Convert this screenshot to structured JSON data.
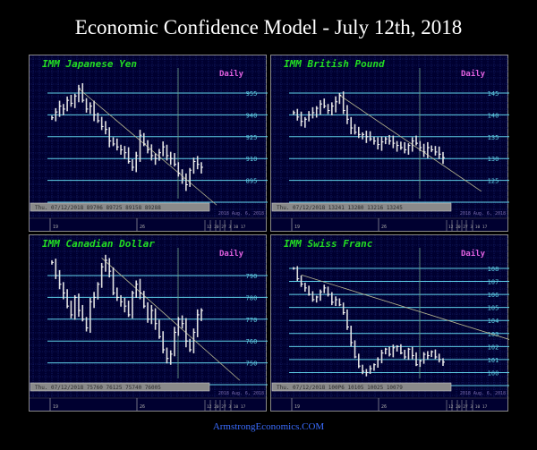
{
  "title": "Economic Confidence Model - July 12th, 2018",
  "footer": "ArmstrongEconomics.COM",
  "chart_data": [
    {
      "type": "bar",
      "title": "IMM Japanese Yen",
      "period": "Daily",
      "levels": [
        955,
        940,
        925,
        910,
        895,
        880
      ],
      "level_labels": [
        "955",
        "940",
        "925",
        "910",
        "895"
      ],
      "closes": [
        938,
        942,
        946,
        944,
        950,
        948,
        953,
        958,
        950,
        944,
        946,
        940,
        936,
        932,
        930,
        922,
        920,
        918,
        916,
        914,
        908,
        904,
        912,
        926,
        920,
        916,
        912,
        910,
        914,
        918,
        912,
        910,
        906,
        900,
        896,
        892,
        902,
        908,
        906,
        904
      ],
      "trendline": [
        [
          7,
          958
        ],
        [
          43,
          878
        ]
      ],
      "readout": "Thu. 07/12/2018  89706  89725  89158  89288",
      "x_tick_labels": [
        "19",
        "26"
      ],
      "x_note": "2018 Aug. 6, 2018",
      "x_small_labels": "12 20 27 3 10 17"
    },
    {
      "type": "bar",
      "title": "IMM British Pound",
      "period": "Daily",
      "levels": [
        145,
        140,
        135,
        130,
        125,
        120
      ],
      "level_labels": [
        "145",
        "140",
        "135",
        "130",
        "125"
      ],
      "closes": [
        140.5,
        139.5,
        138.5,
        139,
        140,
        140.5,
        141.5,
        142.5,
        142,
        141,
        142,
        143,
        144.5,
        141,
        139,
        137,
        136,
        135.5,
        135.5,
        135,
        134.5,
        134,
        133.2,
        133.8,
        134.5,
        134,
        133.5,
        133,
        132.5,
        132,
        133,
        134,
        133.5,
        132.5,
        131.5,
        132.5,
        132,
        131.5,
        131,
        130.2
      ],
      "trendline": [
        [
          12,
          144.5
        ],
        [
          49,
          122.5
        ]
      ],
      "readout": "Thu. 07/12/2018  13241  13280  13216  13245",
      "x_tick_labels": [
        "19",
        "26"
      ],
      "x_note": "2018 Aug. 6, 2018",
      "x_small_labels": "12 20 27 3 10 17"
    },
    {
      "type": "bar",
      "title": "IMM Canadian Dollar",
      "period": "Daily",
      "levels": [
        790,
        780,
        770,
        760,
        750,
        740
      ],
      "level_labels": [
        "790",
        "780",
        "770",
        "760",
        "750"
      ],
      "closes": [
        796,
        790,
        786,
        782,
        776,
        772,
        780,
        774,
        770,
        766,
        778,
        780,
        786,
        794,
        797,
        792,
        782,
        780,
        778,
        776,
        772,
        782,
        786,
        782,
        776,
        770,
        774,
        768,
        762,
        756,
        752,
        754,
        764,
        770,
        768,
        760,
        756,
        764,
        772,
        774
      ],
      "trendline": [
        [
          13,
          798
        ],
        [
          49,
          742
        ]
      ],
      "readout": "Thu. 07/12/2018  75760  76125  75740  76005",
      "x_tick_labels": [
        "19",
        "26"
      ],
      "x_note": "2018 Aug. 6, 2018",
      "x_small_labels": "12 20 27 3 10 17"
    },
    {
      "type": "bar",
      "title": "IMM Swiss Franc",
      "period": "Daily",
      "levels": [
        108,
        107,
        106,
        105,
        104,
        103,
        102,
        101,
        100,
        99
      ],
      "level_labels": [
        "108",
        "107",
        "106",
        "105",
        "104",
        "103",
        "102",
        "101",
        "100"
      ],
      "closes": [
        108,
        107.2,
        106.8,
        106.5,
        106,
        105.6,
        105.8,
        106.2,
        106.5,
        106,
        105.4,
        105.6,
        105.2,
        104.6,
        103.5,
        102.3,
        101.2,
        100.5,
        100.1,
        100,
        100.3,
        100.6,
        101,
        101.5,
        101.8,
        101.4,
        101.9,
        102,
        101.5,
        101.2,
        101.8,
        101.3,
        100.6,
        100.9,
        101.4,
        101.3,
        101.6,
        101.2,
        101,
        100.8
      ],
      "trendline": [
        [
          2,
          107.5
        ],
        [
          60,
          102.2
        ]
      ],
      "readout": "Thu. 07/12/2018  100P6  10105  10025  10079",
      "x_tick_labels": [
        "19",
        "26"
      ],
      "x_note": "2018 Aug. 6, 2018",
      "x_small_labels": "12 20 27 3 10 17"
    }
  ],
  "colors": {
    "background": "#000000",
    "panel": "#000030",
    "grid": "#1c2a78",
    "level_line": "#5fd0e8",
    "level_label": "#5fd0e8",
    "bars": "#e0e0e0",
    "trendline": "#b8b890",
    "cycle_line": "#6fa080",
    "panel_title": "#22dd22",
    "period_label": "#e060e0",
    "footer": "#3a6cff"
  }
}
